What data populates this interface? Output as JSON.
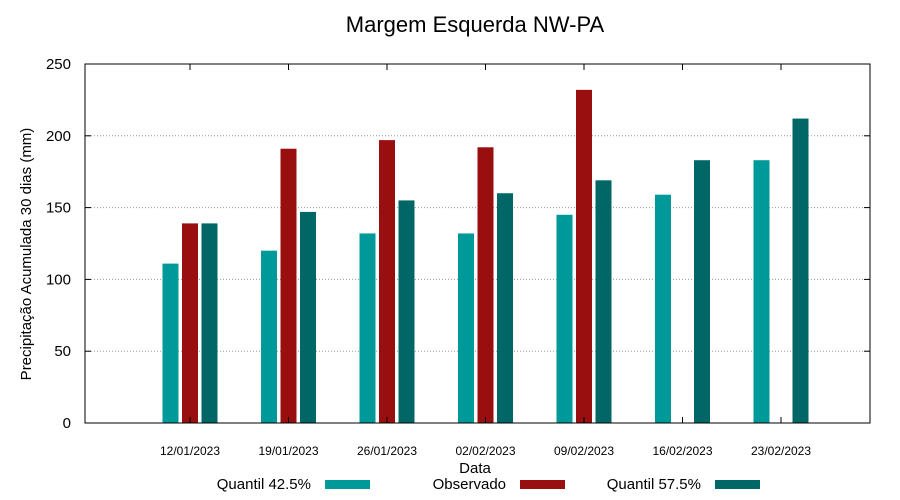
{
  "chart_data": {
    "type": "bar",
    "title": "Margem Esquerda NW-PA",
    "xlabel": "Data",
    "ylabel": "Precipitação Acumulada 30 dias (mm)",
    "ylim": [
      0,
      250
    ],
    "yticks": [
      0,
      50,
      100,
      150,
      200,
      250
    ],
    "grid": "horizontal-dotted",
    "legend_position": "bottom",
    "categories": [
      "12/01/2023",
      "19/01/2023",
      "26/01/2023",
      "02/02/2023",
      "09/02/2023",
      "16/02/2023",
      "23/02/2023"
    ],
    "series": [
      {
        "name": "Quantil 42.5%",
        "color": "#009999",
        "values": [
          111,
          120,
          132,
          132,
          145,
          159,
          183
        ]
      },
      {
        "name": "Observado",
        "color": "#990f0f",
        "values": [
          139,
          191,
          197,
          192,
          232,
          null,
          null
        ]
      },
      {
        "name": "Quantil 57.5%",
        "color": "#006666",
        "values": [
          139,
          147,
          155,
          160,
          169,
          183,
          212
        ]
      }
    ]
  }
}
